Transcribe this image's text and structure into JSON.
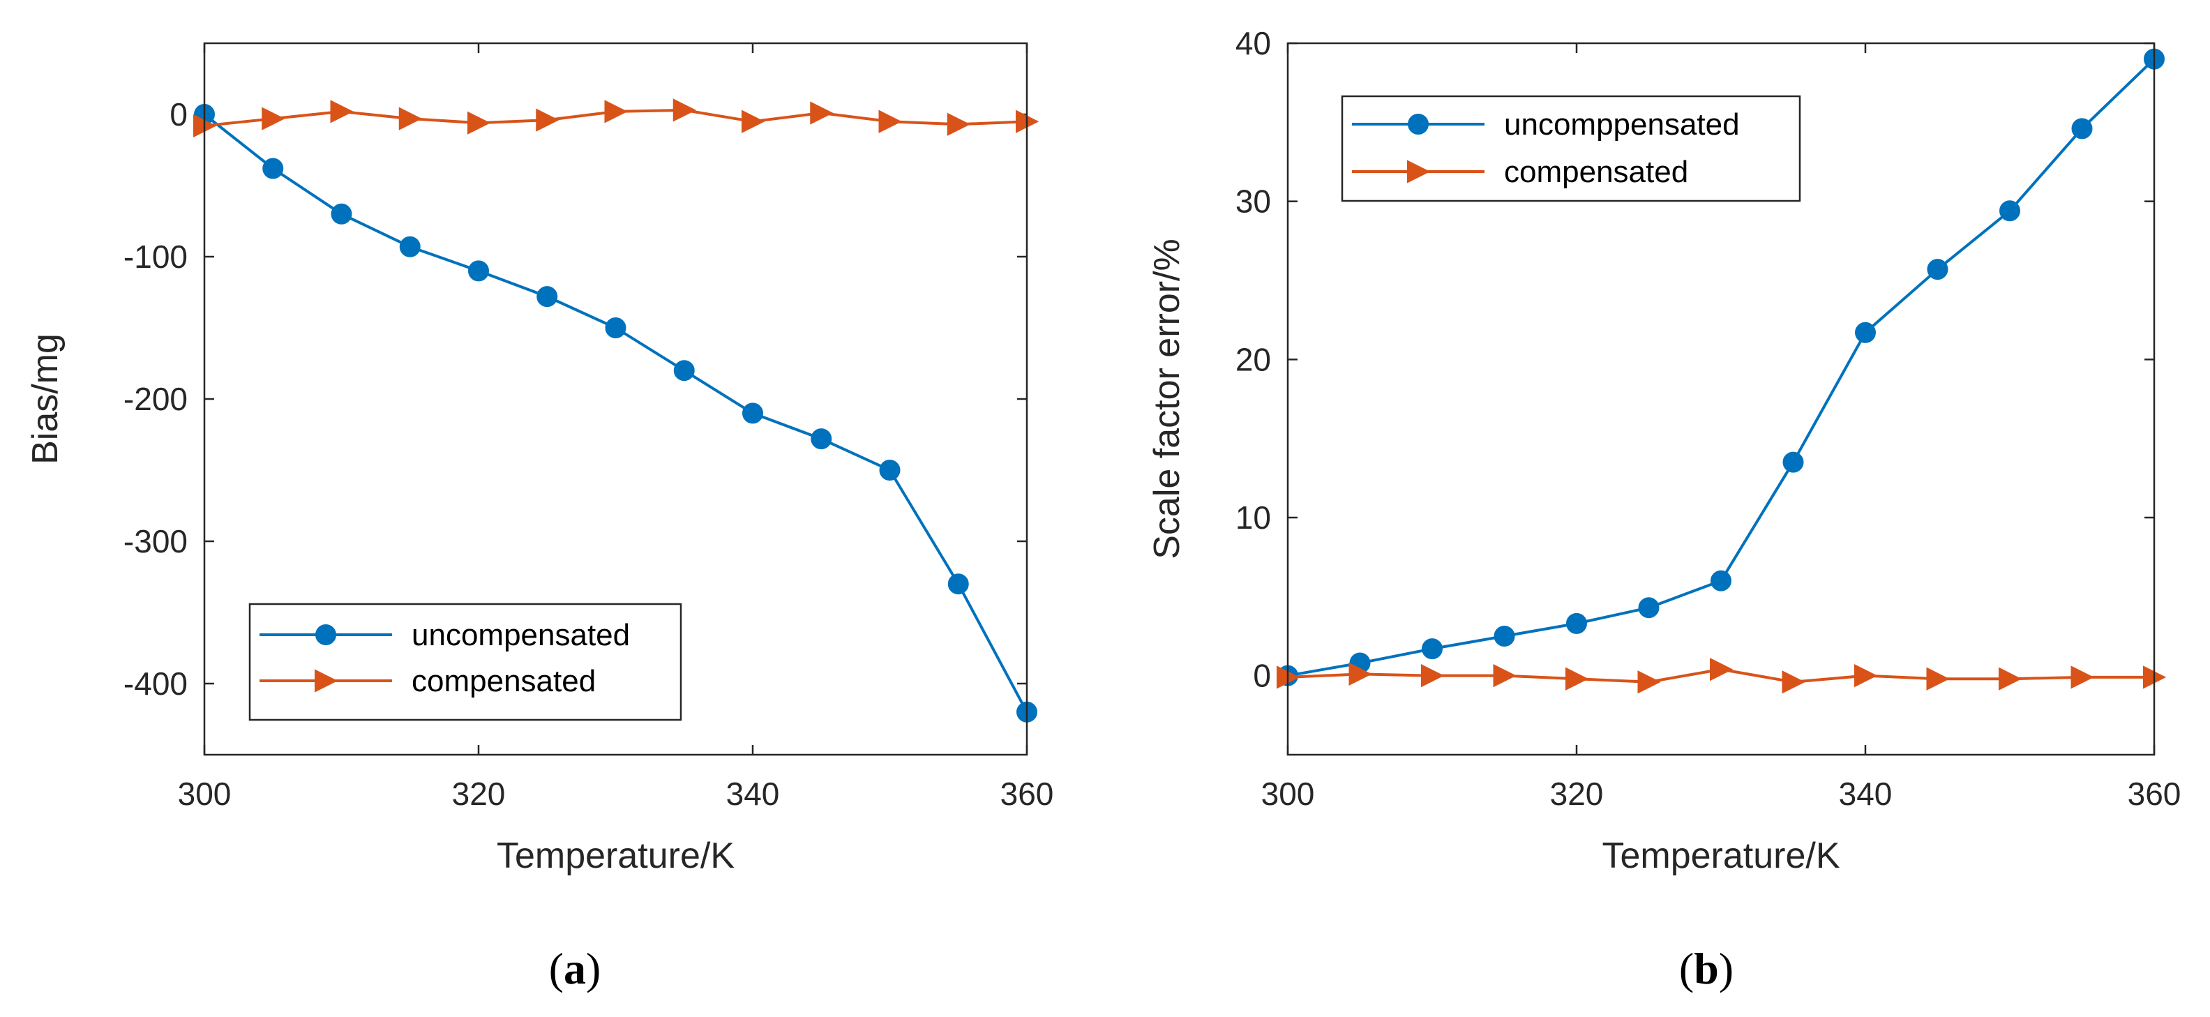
{
  "chart_data": [
    {
      "type": "line",
      "panel_label": "a",
      "xlabel": "Temperature/K",
      "ylabel": "Bias/mg",
      "xlim": [
        300,
        360
      ],
      "ylim": [
        -450,
        50
      ],
      "xticks": [
        300,
        320,
        340,
        360
      ],
      "yticks": [
        0,
        -100,
        -200,
        -300,
        -400
      ],
      "xtick_labels": [
        "300",
        "320",
        "340",
        "360"
      ],
      "ytick_labels": [
        "0",
        "-100",
        "-200",
        "-300",
        "-400"
      ],
      "legend_position": "bottom-left",
      "x": [
        300,
        305,
        310,
        315,
        320,
        325,
        330,
        335,
        340,
        345,
        350,
        355,
        360
      ],
      "series": [
        {
          "name": "uncompensated",
          "color": "#0072BD",
          "marker": "circle",
          "values": [
            0,
            -38,
            -70,
            -93,
            -110,
            -128,
            -150,
            -180,
            -210,
            -228,
            -250,
            -330,
            -420
          ]
        },
        {
          "name": "compensated",
          "color": "#D95319",
          "marker": "triangle-right",
          "values": [
            -8,
            -3,
            2,
            -3,
            -6,
            -4,
            2,
            3,
            -5,
            1,
            -5,
            -7,
            -5
          ]
        }
      ]
    },
    {
      "type": "line",
      "panel_label": "b",
      "xlabel": "Temperature/K",
      "ylabel": "Scale factor error/%",
      "xlim": [
        300,
        360
      ],
      "ylim": [
        -5,
        40
      ],
      "xticks": [
        300,
        320,
        340,
        360
      ],
      "yticks": [
        0,
        10,
        20,
        30,
        40
      ],
      "xtick_labels": [
        "300",
        "320",
        "340",
        "360"
      ],
      "ytick_labels": [
        "0",
        "10",
        "20",
        "30",
        "40"
      ],
      "legend_position": "top-left",
      "x": [
        300,
        305,
        310,
        315,
        320,
        325,
        330,
        335,
        340,
        345,
        350,
        355,
        360
      ],
      "series": [
        {
          "name": "uncomppensated",
          "color": "#0072BD",
          "marker": "circle",
          "values": [
            0,
            0.8,
            1.7,
            2.5,
            3.3,
            4.3,
            6.0,
            13.5,
            21.7,
            25.7,
            29.4,
            34.6,
            39.0
          ]
        },
        {
          "name": "compensated",
          "color": "#D95319",
          "marker": "triangle-right",
          "values": [
            -0.1,
            0.1,
            0.0,
            0.0,
            -0.2,
            -0.4,
            0.4,
            -0.4,
            0.0,
            -0.2,
            -0.2,
            -0.1,
            -0.1
          ]
        }
      ]
    }
  ]
}
